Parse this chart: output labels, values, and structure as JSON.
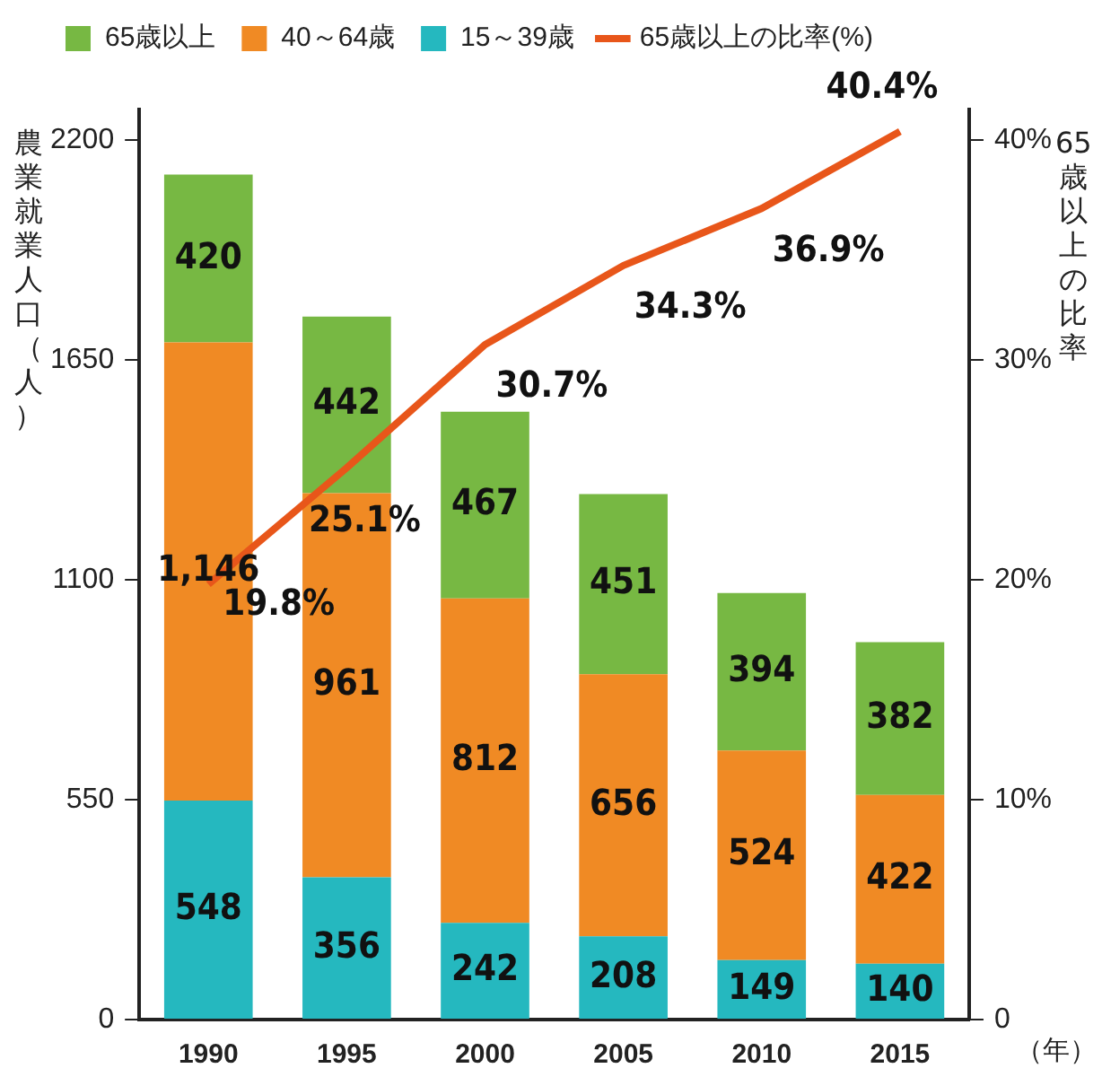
{
  "chart_data": {
    "type": "bar",
    "stacked": true,
    "ylabel": "農業就業人口（人）",
    "y2label": "65歳以上の比率",
    "xlabel": "（年）",
    "categories": [
      "1990",
      "1995",
      "2000",
      "2005",
      "2010",
      "2015"
    ],
    "series": [
      {
        "name": "15～39歳",
        "color": "#25b8bf",
        "values": [
          548,
          356,
          242,
          208,
          149,
          140
        ],
        "value_labels": [
          "548",
          "356",
          "242",
          "208",
          "149",
          "140"
        ]
      },
      {
        "name": "40～64歳",
        "color": "#f08a24",
        "values": [
          1146,
          961,
          812,
          656,
          524,
          422
        ],
        "value_labels": [
          "1,146",
          "961",
          "812",
          "656",
          "524",
          "422"
        ]
      },
      {
        "name": "65歳以上",
        "color": "#77b843",
        "values": [
          420,
          442,
          467,
          451,
          394,
          382
        ],
        "value_labels": [
          "420",
          "442",
          "467",
          "451",
          "394",
          "382"
        ]
      },
      {
        "name": "65歳以上の比率(%)",
        "type": "line",
        "axis": "y2",
        "color": "#e8561a",
        "values": [
          19.8,
          25.1,
          30.7,
          34.3,
          36.9,
          40.4
        ],
        "value_labels": [
          "19.8%",
          "25.1%",
          "30.7%",
          "34.3%",
          "36.9%",
          "40.4%"
        ]
      }
    ],
    "ylim": [
      0,
      2277
    ],
    "yticks": [
      0,
      550,
      1100,
      1650,
      2200
    ],
    "y2lim": [
      0,
      41.4
    ],
    "y2ticks": [
      0,
      {
        "value": 10,
        "label": "10%"
      },
      {
        "value": 20,
        "label": "20%"
      },
      {
        "value": 30,
        "label": "30%"
      },
      {
        "value": 40,
        "label": "40%"
      }
    ],
    "grid": false,
    "legend": "top left",
    "marker": "none"
  }
}
